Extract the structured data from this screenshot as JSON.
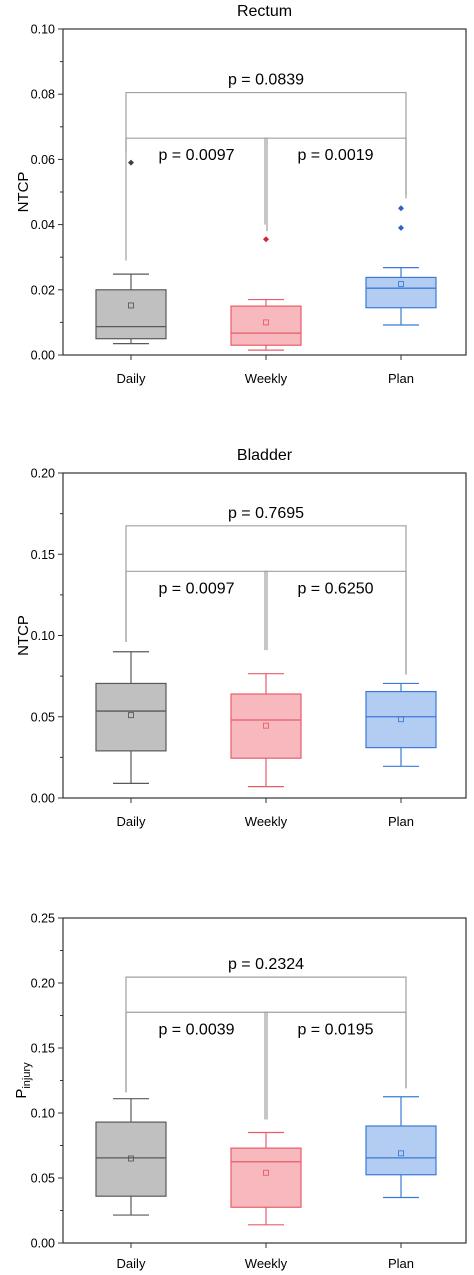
{
  "chart_data": [
    {
      "type": "box",
      "title": "Rectum",
      "ylabel": "NTCP",
      "ylabel_sub": "",
      "ylim": [
        0,
        0.1
      ],
      "yticks": [
        "0.00",
        "0.02",
        "0.04",
        "0.06",
        "0.08",
        "0.10"
      ],
      "categories": [
        "Daily",
        "Weekly",
        "Plan"
      ],
      "boxes": [
        {
          "name": "Daily",
          "whisker_low": 0.0035,
          "q1": 0.005,
          "median": 0.0087,
          "q3": 0.02,
          "whisker_high": 0.0248,
          "mean": 0.0152,
          "outliers": [
            0.059
          ]
        },
        {
          "name": "Weekly",
          "whisker_low": 0.0015,
          "q1": 0.003,
          "median": 0.0067,
          "q3": 0.015,
          "whisker_high": 0.017,
          "mean": 0.01,
          "outliers": [
            0.0355
          ]
        },
        {
          "name": "Plan",
          "whisker_low": 0.0092,
          "q1": 0.0145,
          "median": 0.0205,
          "q3": 0.0238,
          "whisker_high": 0.0268,
          "mean": 0.0218,
          "outliers": [
            0.045,
            0.039
          ]
        }
      ],
      "brackets": [
        {
          "from": 0,
          "to": 2,
          "level": 0.0805,
          "label": "p = 0.0839",
          "left_foot": 0.062,
          "right_foot": 0.049
        },
        {
          "from": 0,
          "to": 1,
          "level": 0.0665,
          "label": "p = 0.0097",
          "left_foot": 0.029,
          "right_foot": 0.038
        },
        {
          "from": 1,
          "to": 2,
          "level": 0.0665,
          "label": "p = 0.0019",
          "left_foot": 0.04,
          "right_foot": 0.048
        }
      ]
    },
    {
      "type": "box",
      "title": "Bladder",
      "ylabel": "NTCP",
      "ylabel_sub": "",
      "ylim": [
        0,
        0.2
      ],
      "yticks": [
        "0.00",
        "0.05",
        "0.10",
        "0.15",
        "0.20"
      ],
      "categories": [
        "Daily",
        "Weekly",
        "Plan"
      ],
      "boxes": [
        {
          "name": "Daily",
          "whisker_low": 0.009,
          "q1": 0.029,
          "median": 0.0535,
          "q3": 0.0705,
          "whisker_high": 0.09,
          "mean": 0.051,
          "outliers": []
        },
        {
          "name": "Weekly",
          "whisker_low": 0.007,
          "q1": 0.0245,
          "median": 0.048,
          "q3": 0.064,
          "whisker_high": 0.0765,
          "mean": 0.0445,
          "outliers": []
        },
        {
          "name": "Plan",
          "whisker_low": 0.0195,
          "q1": 0.031,
          "median": 0.05,
          "q3": 0.0655,
          "whisker_high": 0.0705,
          "mean": 0.0485,
          "outliers": []
        }
      ],
      "brackets": [
        {
          "from": 0,
          "to": 2,
          "level": 0.1675,
          "label": "p = 0.7695",
          "left_foot": 0.096,
          "right_foot": 0.076
        },
        {
          "from": 0,
          "to": 1,
          "level": 0.1395,
          "label": "p = 0.0097",
          "left_foot": 0.096,
          "right_foot": 0.091
        },
        {
          "from": 1,
          "to": 2,
          "level": 0.1395,
          "label": "p = 0.6250",
          "left_foot": 0.091,
          "right_foot": 0.076
        }
      ]
    },
    {
      "type": "box",
      "title": "",
      "ylabel": "P",
      "ylabel_sub": "injury",
      "ylim": [
        0,
        0.25
      ],
      "yticks": [
        "0.00",
        "0.05",
        "0.10",
        "0.15",
        "0.20",
        "0.25"
      ],
      "categories": [
        "Daily",
        "Weekly",
        "Plan"
      ],
      "boxes": [
        {
          "name": "Daily",
          "whisker_low": 0.0215,
          "q1": 0.036,
          "median": 0.0655,
          "q3": 0.093,
          "whisker_high": 0.111,
          "mean": 0.065,
          "outliers": []
        },
        {
          "name": "Weekly",
          "whisker_low": 0.014,
          "q1": 0.0275,
          "median": 0.0625,
          "q3": 0.073,
          "whisker_high": 0.085,
          "mean": 0.054,
          "outliers": []
        },
        {
          "name": "Plan",
          "whisker_low": 0.035,
          "q1": 0.0525,
          "median": 0.0655,
          "q3": 0.09,
          "whisker_high": 0.1125,
          "mean": 0.069,
          "outliers": []
        }
      ],
      "brackets": [
        {
          "from": 0,
          "to": 2,
          "level": 0.2045,
          "label": "p = 0.2324",
          "left_foot": 0.116,
          "right_foot": 0.119
        },
        {
          "from": 0,
          "to": 1,
          "level": 0.1775,
          "label": "p = 0.0039",
          "left_foot": 0.116,
          "right_foot": 0.095
        },
        {
          "from": 1,
          "to": 2,
          "level": 0.1775,
          "label": "p = 0.0195",
          "left_foot": 0.095,
          "right_foot": 0.119
        }
      ]
    }
  ],
  "style": {
    "box_fills": [
      "#c0c0c0",
      "#f7b9bd",
      "#b3ccf2"
    ],
    "box_strokes": [
      "#595959",
      "#e85d6a",
      "#3a7bd5"
    ],
    "outlier_colors": [
      "#404040",
      "#d62434",
      "#2d64c8"
    ],
    "bracket_color": "#a0a0a0",
    "axis_color": "#333333"
  }
}
